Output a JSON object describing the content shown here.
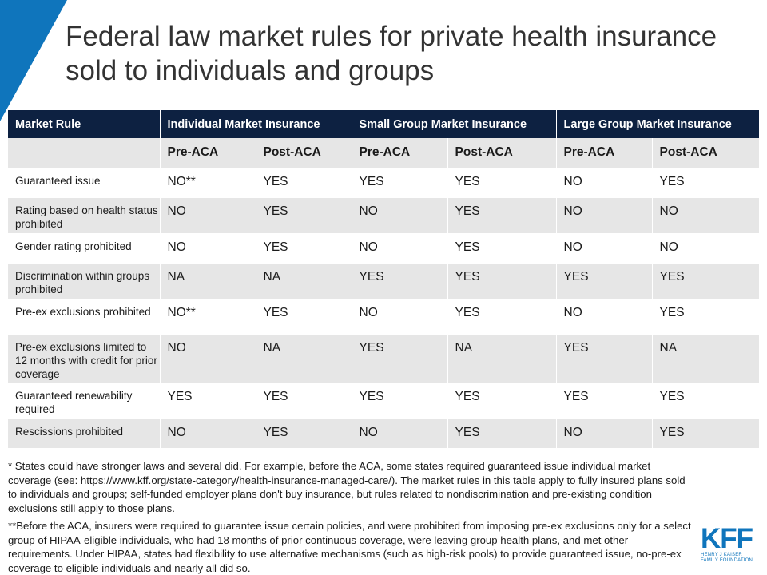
{
  "title": "Federal law market rules for private health insurance sold to individuals and groups",
  "table": {
    "header": [
      "Market Rule",
      "Individual Market Insurance",
      "Small Group Market Insurance",
      "Large Group Market Insurance"
    ],
    "subheader": [
      "",
      "Pre-ACA",
      "Post-ACA",
      "Pre-ACA",
      "Post-ACA",
      "Pre-ACA",
      "Post-ACA"
    ],
    "rows": [
      {
        "rule": "Guaranteed issue",
        "values": [
          "NO**",
          "YES",
          "YES",
          "YES",
          "NO",
          "YES"
        ]
      },
      {
        "rule": "Rating based on health status prohibited",
        "values": [
          "NO",
          "YES",
          "NO",
          "YES",
          "NO",
          "NO"
        ]
      },
      {
        "rule": "Gender rating prohibited",
        "values": [
          "NO",
          "YES",
          "NO",
          "YES",
          "NO",
          "NO"
        ]
      },
      {
        "rule": "Discrimination within groups prohibited",
        "values": [
          "NA",
          "NA",
          "YES",
          "YES",
          "YES",
          "YES"
        ]
      },
      {
        "rule": "Pre-ex exclusions prohibited",
        "values": [
          "NO**",
          "YES",
          "NO",
          "YES",
          "NO",
          "YES"
        ]
      },
      {
        "rule": "Pre-ex exclusions limited to 12 months with credit for prior coverage",
        "values": [
          "NO",
          "NA",
          "YES",
          "NA",
          "YES",
          "NA"
        ]
      },
      {
        "rule": "Guaranteed renewability required",
        "values": [
          "YES",
          "YES",
          "YES",
          "YES",
          "YES",
          "YES"
        ]
      },
      {
        "rule": "Rescissions prohibited",
        "values": [
          "NO",
          "YES",
          "NO",
          "YES",
          "NO",
          "YES"
        ]
      }
    ]
  },
  "footnotes": {
    "note1": "* States could have stronger laws and several did.  For example, before the ACA, some states required guaranteed issue individual market coverage (see: https://www.kff.org/state-category/health-insurance-managed-care/). The market rules in this table apply to fully insured plans sold to individuals and groups; self-funded employer plans don't buy insurance, but rules related to nondiscrimination and pre-existing condition exclusions still apply to those plans.",
    "note2": "**Before the ACA, insurers were required to guarantee issue certain policies, and were prohibited from imposing pre-ex exclusions only for a select group of HIPAA-eligible  individuals, who had 18 months of prior continuous coverage, were leaving group health plans, and met other requirements.  Under HIPAA, states had flexibility to use alternative mechanisms (such as high-risk pools) to provide guaranteed issue, no-pre-ex coverage to eligible individuals and nearly all did so."
  },
  "logo": {
    "mark": "KFF",
    "line1": "HENRY J KAISER",
    "line2": "FAMILY FOUNDATION"
  },
  "colors": {
    "accent": "#0f75bc",
    "header_bg": "#0d2141",
    "band_bg": "#e6e6e6"
  }
}
